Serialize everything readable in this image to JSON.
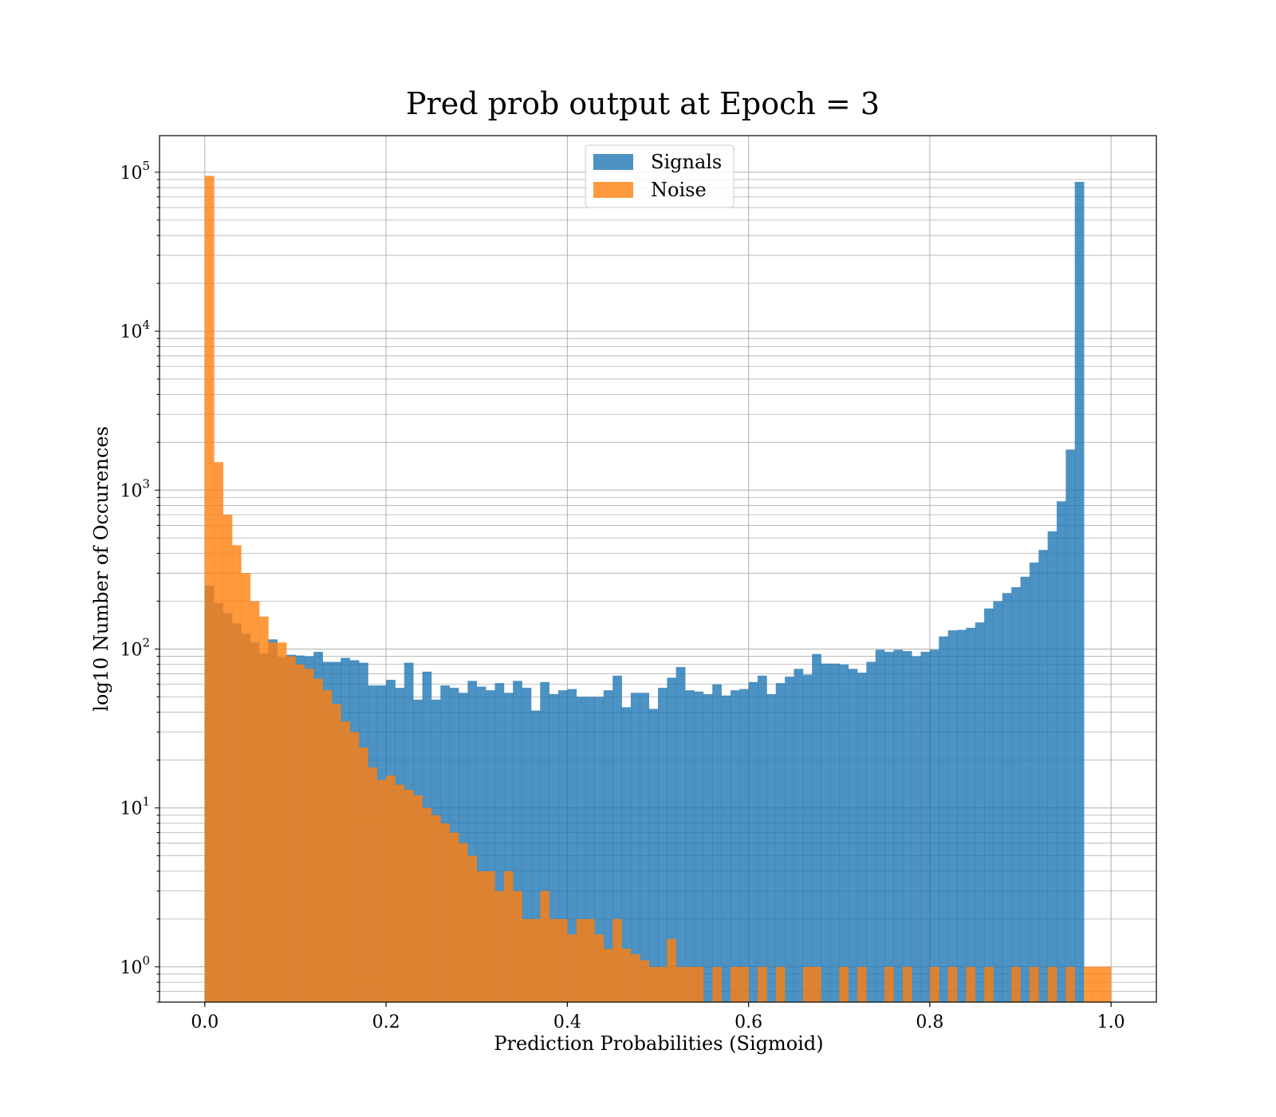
{
  "chart_data": {
    "type": "bar",
    "title": "Pred prob output at Epoch = 3",
    "xlabel": "Prediction Probabilities (Sigmoid)",
    "ylabel": "log10 Number of Occurences",
    "yscale": "log",
    "xlim": [
      -0.05,
      1.05
    ],
    "ylim": [
      0.6,
      170000
    ],
    "x_ticks": [
      0.0,
      0.2,
      0.4,
      0.6,
      0.8,
      1.0
    ],
    "x_tick_labels": [
      "0.0",
      "0.2",
      "0.4",
      "0.6",
      "0.8",
      "1.0"
    ],
    "y_ticks": [
      1,
      10,
      100,
      1000,
      10000,
      100000
    ],
    "y_tick_base": "10",
    "y_tick_exponents": [
      "0",
      "1",
      "2",
      "3",
      "4",
      "5"
    ],
    "grid": true,
    "bins": 100,
    "bin_range": [
      0.0,
      1.0
    ],
    "legend_position": "top-center",
    "colors": {
      "Signals": "#1f77b4",
      "Noise": "#ff7f0e"
    },
    "series": [
      {
        "name": "Signals",
        "values": [
          250,
          195,
          168,
          145,
          125,
          110,
          94,
          115,
          89,
          92,
          91,
          90,
          96,
          83,
          83,
          88,
          85,
          82,
          59,
          59,
          64,
          57,
          82,
          48,
          72,
          48,
          59,
          57,
          53,
          63,
          58,
          55,
          61,
          53,
          63,
          57,
          41,
          62,
          52,
          55,
          56,
          50,
          50,
          50,
          55,
          68,
          43,
          53,
          53,
          42,
          57,
          66,
          77,
          55,
          54,
          52,
          60,
          51,
          55,
          56,
          62,
          68,
          52,
          61,
          67,
          75,
          69,
          93,
          81,
          81,
          80,
          75,
          71,
          83,
          99,
          96,
          99,
          97,
          90,
          96,
          99,
          120,
          131,
          132,
          136,
          147,
          180,
          200,
          225,
          245,
          285,
          350,
          420,
          550,
          850,
          1800,
          87000,
          0,
          0,
          0
        ]
      },
      {
        "name": "Noise",
        "values": [
          95000,
          1500,
          700,
          450,
          300,
          200,
          160,
          110,
          110,
          90,
          80,
          75,
          65,
          55,
          45,
          35,
          30,
          24,
          18,
          15,
          16,
          14,
          13,
          12,
          10,
          9,
          8,
          7,
          6,
          5,
          4,
          4,
          3,
          4,
          3,
          2,
          2,
          3,
          2,
          2,
          1.6,
          2,
          2,
          1.6,
          1.3,
          2,
          1.3,
          1.2,
          1.1,
          1,
          1,
          1.5,
          1,
          1,
          1,
          0.6,
          1,
          0.6,
          1,
          1,
          0.6,
          1,
          0.6,
          1,
          0.6,
          0.6,
          1,
          1,
          0.6,
          0.6,
          1,
          0.6,
          1,
          0.6,
          0.6,
          1,
          0.6,
          1,
          0.6,
          0.6,
          1,
          0.6,
          1,
          0.6,
          1,
          0.6,
          1,
          0.6,
          0.6,
          1,
          0.6,
          1,
          0.6,
          1,
          0.6,
          1,
          0.6,
          1,
          1,
          1
        ]
      }
    ]
  }
}
